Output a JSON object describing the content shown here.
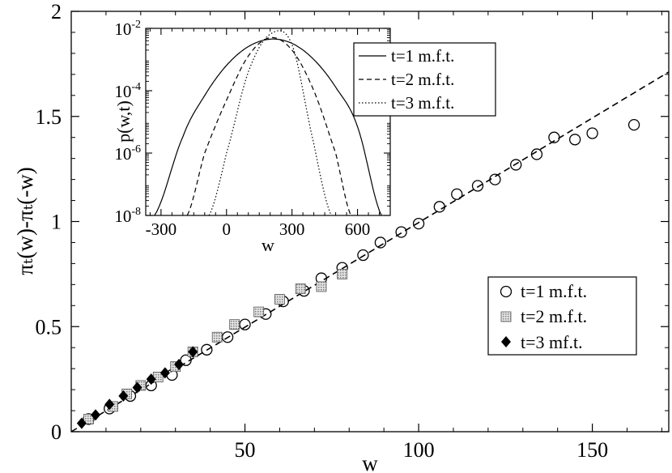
{
  "chart_data": [
    {
      "type": "scatter",
      "xlabel": "w",
      "ylabel": "πₜ(w)-πₜ(-w)",
      "xlim": [
        0,
        172
      ],
      "ylim": [
        0,
        2
      ],
      "x_ticks": [
        50,
        100,
        150
      ],
      "x_tick_labels": [
        "50",
        "100",
        "150"
      ],
      "y_ticks": [
        0,
        0.5,
        1,
        1.5,
        2
      ],
      "y_tick_labels": [
        "0",
        "0.5",
        "1",
        "1.5",
        "2"
      ],
      "grid": false,
      "legend_position": "lower-right",
      "reference_line": {
        "style": "dashed",
        "slope": 0.00995,
        "intercept": 0
      },
      "series": [
        {
          "name": "t=1 m.f.t.",
          "marker": "open-circle",
          "x": [
            5,
            11,
            17,
            23,
            29,
            33,
            39,
            45,
            50,
            56,
            61,
            67,
            72,
            78,
            84,
            89,
            95,
            100,
            106,
            111,
            117,
            122,
            128,
            134,
            139,
            145,
            150,
            162
          ],
          "y": [
            0.06,
            0.11,
            0.17,
            0.22,
            0.27,
            0.34,
            0.39,
            0.45,
            0.51,
            0.56,
            0.62,
            0.67,
            0.73,
            0.78,
            0.84,
            0.9,
            0.95,
            0.99,
            1.07,
            1.13,
            1.17,
            1.2,
            1.27,
            1.32,
            1.4,
            1.39,
            1.42,
            1.46
          ]
        },
        {
          "name": "t=2 m.f.t.",
          "marker": "gray-square",
          "x": [
            5,
            12,
            16,
            20,
            25,
            30,
            35,
            42,
            47,
            54,
            60,
            66,
            72,
            78
          ],
          "y": [
            0.06,
            0.12,
            0.18,
            0.22,
            0.26,
            0.31,
            0.38,
            0.45,
            0.51,
            0.57,
            0.63,
            0.68,
            0.69,
            0.75
          ]
        },
        {
          "name": "t=3 mf.t.",
          "marker": "filled-diamond",
          "x": [
            3,
            7,
            11,
            15,
            19,
            23,
            27,
            31,
            35
          ],
          "y": [
            0.04,
            0.08,
            0.13,
            0.17,
            0.21,
            0.25,
            0.28,
            0.32,
            0.38
          ]
        }
      ]
    },
    {
      "type": "line",
      "xlabel": "w",
      "ylabel": "p(w,t)",
      "xlim": [
        -370,
        750
      ],
      "ylim": [
        1e-08,
        0.01
      ],
      "yscale": "log",
      "x_ticks": [
        -300,
        0,
        300,
        600
      ],
      "x_tick_labels": [
        "-300",
        "0",
        "300",
        "600"
      ],
      "y_ticks": [
        1e-08,
        1e-06,
        0.0001,
        0.01
      ],
      "y_tick_labels": [
        {
          "base": "10",
          "exp": "-8"
        },
        {
          "base": "10",
          "exp": "-6"
        },
        {
          "base": "10",
          "exp": "-4"
        },
        {
          "base": "10",
          "exp": "-2"
        }
      ],
      "legend_position": "top-right",
      "series": [
        {
          "name": "t=1 m.f.t.",
          "style": "solid",
          "x": [
            -330,
            -200,
            -100,
            0,
            100,
            200,
            300,
            400,
            500,
            600,
            710
          ],
          "y": [
            1e-08,
            3.3e-06,
            7e-05,
            0.00065,
            0.0026,
            0.0045,
            0.0033,
            0.001,
            0.00013,
            7e-06,
            1e-08
          ]
        },
        {
          "name": "t=2 m.f.t.",
          "style": "dashed",
          "x": [
            -180,
            -100,
            0,
            100,
            200,
            300,
            400,
            500,
            570
          ],
          "y": [
            1e-08,
            1e-06,
            5e-05,
            0.0013,
            0.005,
            0.002,
            0.0001,
            1e-06,
            1e-08
          ]
        },
        {
          "name": "t=3 m.f.t.",
          "style": "dotted",
          "x": [
            -80,
            0,
            100,
            200,
            300,
            400,
            480
          ],
          "y": [
            1e-08,
            1e-06,
            0.0004,
            0.0065,
            0.003,
            2e-06,
            1e-08
          ]
        }
      ]
    }
  ]
}
